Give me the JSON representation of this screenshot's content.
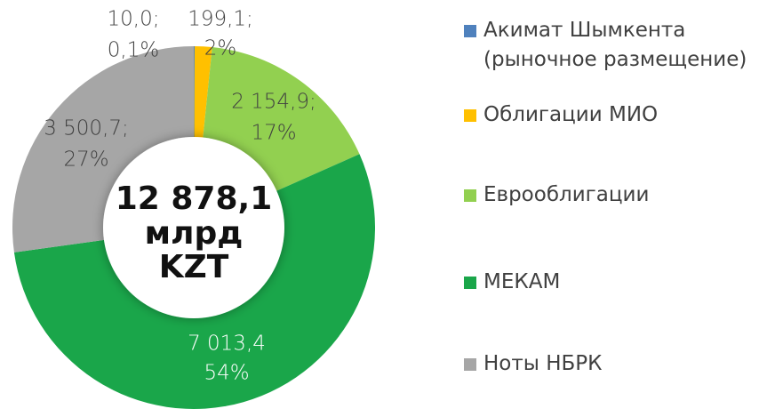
{
  "chart_data": {
    "type": "donut",
    "categories": [
      "Акимат Шымкента (рыночное размещение)",
      "Облигации МИО",
      "Еврооблигации",
      "МЕКАМ",
      "Ноты НБРК"
    ],
    "values": [
      10.0,
      199.1,
      2154.9,
      7013.4,
      3500.7
    ],
    "value_labels": [
      "10,0;",
      "199,1;",
      "2 154,9;",
      "7 013,4",
      "3 500,7;"
    ],
    "percents": [
      0.1,
      2,
      17,
      54,
      27
    ],
    "percent_labels": [
      "0,1%",
      "2%",
      "17%",
      "54%",
      "27%"
    ],
    "colors": [
      "#4f81bd",
      "#ffc000",
      "#92d050",
      "#1aa64a",
      "#a6a6a6"
    ],
    "center_label": [
      "12 878,1",
      "млрд",
      "KZT"
    ],
    "legend": "right"
  }
}
